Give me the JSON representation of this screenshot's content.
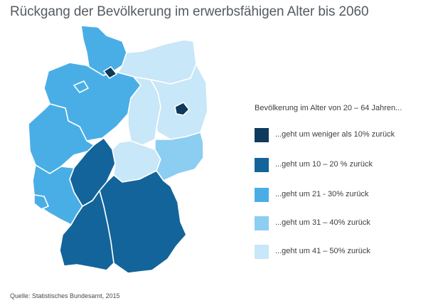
{
  "title": "Rückgang der Bevölkerung im erwerbsfähigen Alter bis 2060",
  "legend": {
    "title": "Bevölkerung im Alter von 20 – 64 Jahren...",
    "items": [
      {
        "label": "...geht um weniger als 10% zurück",
        "color": "#0e3a5b"
      },
      {
        "label": "...geht um 10 – 20 % zurück",
        "color": "#13649a"
      },
      {
        "label": "...geht um 21 - 30% zurück",
        "color": "#4aaee6"
      },
      {
        "label": "...geht um 31 – 40% zurück",
        "color": "#8ccdf2"
      },
      {
        "label": "...geht um 41 – 50% zurück",
        "color": "#c8e7f8"
      }
    ]
  },
  "source": "Quelle: Statistisches Bundesamt, 2015"
}
